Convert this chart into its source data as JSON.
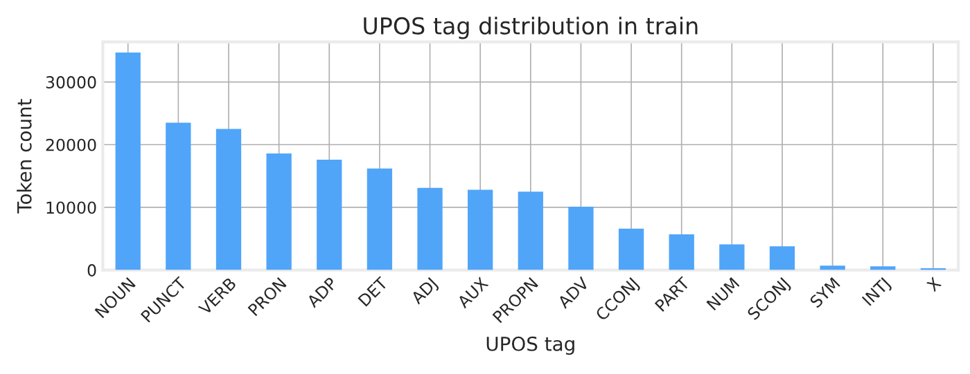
{
  "chart_data": {
    "type": "bar",
    "title": "UPOS tag distribution in train",
    "xlabel": "UPOS tag",
    "ylabel": "Token count",
    "categories": [
      "NOUN",
      "PUNCT",
      "VERB",
      "PRON",
      "ADP",
      "DET",
      "ADJ",
      "AUX",
      "PROPN",
      "ADV",
      "CCONJ",
      "PART",
      "NUM",
      "SCONJ",
      "SYM",
      "INTJ",
      "X"
    ],
    "values": [
      34700,
      23500,
      22500,
      18600,
      17600,
      16200,
      13100,
      12800,
      12500,
      10100,
      6600,
      5700,
      4100,
      3800,
      700,
      600,
      300
    ],
    "color": "#50a5f9",
    "ylim": [
      0,
      36400
    ],
    "yticks": [
      0,
      10000,
      20000,
      30000
    ],
    "grid": true
  }
}
